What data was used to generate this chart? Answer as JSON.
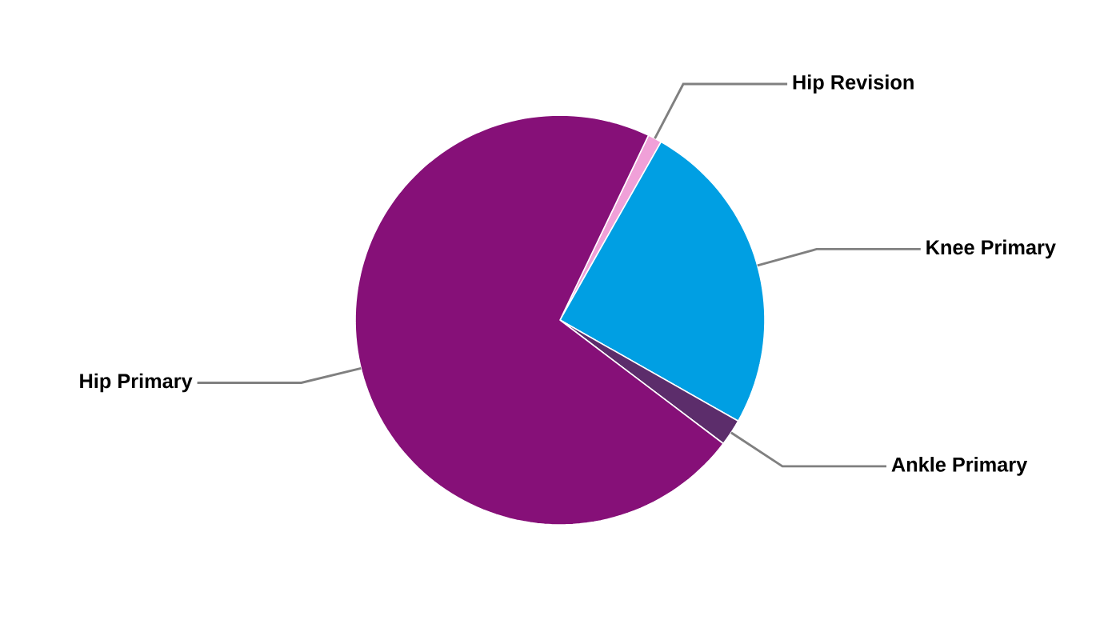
{
  "chart_data": {
    "type": "pie",
    "categories": [
      "Hip Revision",
      "Knee Primary",
      "Ankle Primary",
      "Hip Primary"
    ],
    "values": [
      1.1,
      25,
      2.1,
      71.8
    ],
    "colors": [
      "#f0a0d8",
      "#009fe3",
      "#5c2d6b",
      "#861078"
    ]
  }
}
